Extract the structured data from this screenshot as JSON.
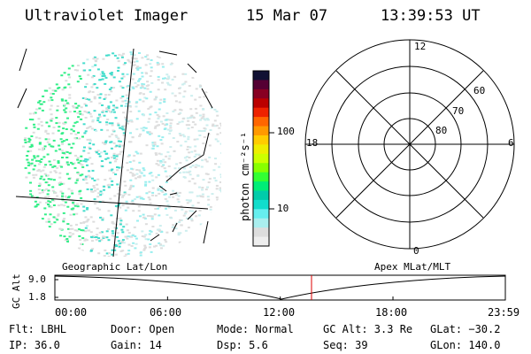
{
  "header": {
    "instrument": "Ultraviolet Imager",
    "date": "15 Mar 07",
    "time": "13:39:53 UT"
  },
  "colorbar": {
    "label": "photon cm⁻²s⁻¹",
    "ticks": [
      "100",
      "10"
    ],
    "colors": [
      "#111133",
      "#550033",
      "#880022",
      "#bb0000",
      "#ee2200",
      "#ff6600",
      "#ff9900",
      "#ffcc00",
      "#eeee00",
      "#ccff00",
      "#88ff00",
      "#33ff33",
      "#00ee77",
      "#00ccaa",
      "#11ddcc",
      "#66eeee",
      "#aaeeee",
      "#dddddd",
      "#eeeeee"
    ]
  },
  "polar": {
    "mlt_labels": {
      "top": "12",
      "left": "18",
      "right": "6",
      "bottom": "0"
    },
    "lat_labels": [
      "60",
      "70",
      "80"
    ]
  },
  "timeline": {
    "left_title": "Geographic Lat/Lon",
    "right_title": "Apex MLat/MLT",
    "ylabel": "GC Alt",
    "ytick_top": "9.0",
    "ytick_bottom": "1.8",
    "xticks": [
      "00:00",
      "06:00",
      "12:00",
      "18:00",
      "23:59"
    ],
    "current_time_marker": "13:39:53"
  },
  "status": {
    "flt": "Flt: LBHL",
    "ip": "IP: 36.0",
    "door": "Door: Open",
    "gain": "Gain: 14",
    "mode": "Mode: Normal",
    "dsp": "Dsp:     5.6",
    "gcalt": "GC Alt: 3.3 Re",
    "seq": "Seq: 39",
    "glat": "GLat: −30.2",
    "glon": "GLon: 140.0"
  }
}
